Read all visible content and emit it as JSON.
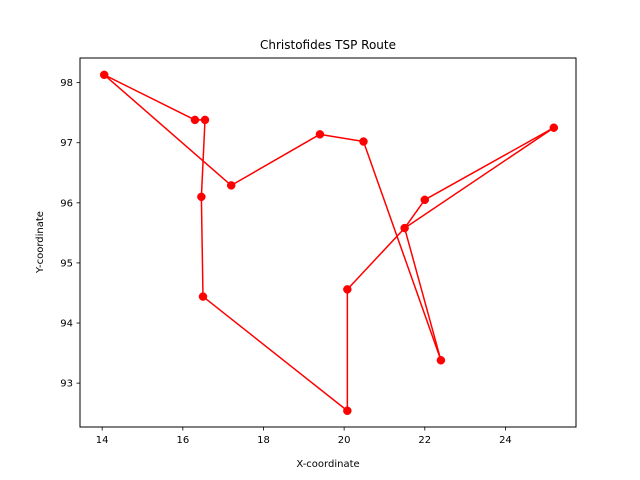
{
  "chart_data": {
    "type": "line",
    "title": "Christofides TSP Route",
    "xlabel": "X-coordinate",
    "ylabel": "Y-coordinate",
    "xlim": [
      13.45,
      25.75
    ],
    "ylim": [
      92.27,
      98.41
    ],
    "xticks": [
      "14",
      "16",
      "18",
      "20",
      "22",
      "24"
    ],
    "yticks": [
      "93",
      "94",
      "95",
      "96",
      "97",
      "98"
    ],
    "grid": false,
    "legend": "none",
    "color": "#ff0000",
    "marker": "circle",
    "x": [
      14.05,
      17.2,
      19.4,
      20.48,
      22.4,
      21.5,
      20.08,
      20.08,
      16.5,
      16.46,
      16.55,
      16.3,
      14.05
    ],
    "y": [
      98.13,
      96.29,
      97.14,
      97.02,
      93.38,
      95.58,
      94.56,
      92.54,
      94.44,
      96.1,
      97.38,
      97.38,
      98.13
    ],
    "points_x": [
      14.05,
      16.3,
      16.55,
      17.2,
      19.4,
      20.48,
      22.4,
      21.5,
      22.0,
      25.2,
      20.08,
      20.08,
      16.5,
      16.46
    ],
    "points_y": [
      98.13,
      97.38,
      97.38,
      96.29,
      97.14,
      97.02,
      93.38,
      95.58,
      96.05,
      97.25,
      94.56,
      92.54,
      94.44,
      96.1
    ],
    "route_x": [
      14.05,
      17.2,
      19.4,
      20.48,
      22.4,
      21.5,
      22.0,
      25.2,
      21.5,
      20.08,
      20.08,
      16.5,
      16.46,
      16.55,
      16.3,
      14.05
    ],
    "route_y": [
      98.13,
      96.29,
      97.14,
      97.02,
      93.38,
      95.58,
      96.05,
      97.25,
      95.58,
      94.56,
      92.54,
      94.44,
      96.1,
      97.38,
      97.38,
      98.13
    ]
  }
}
